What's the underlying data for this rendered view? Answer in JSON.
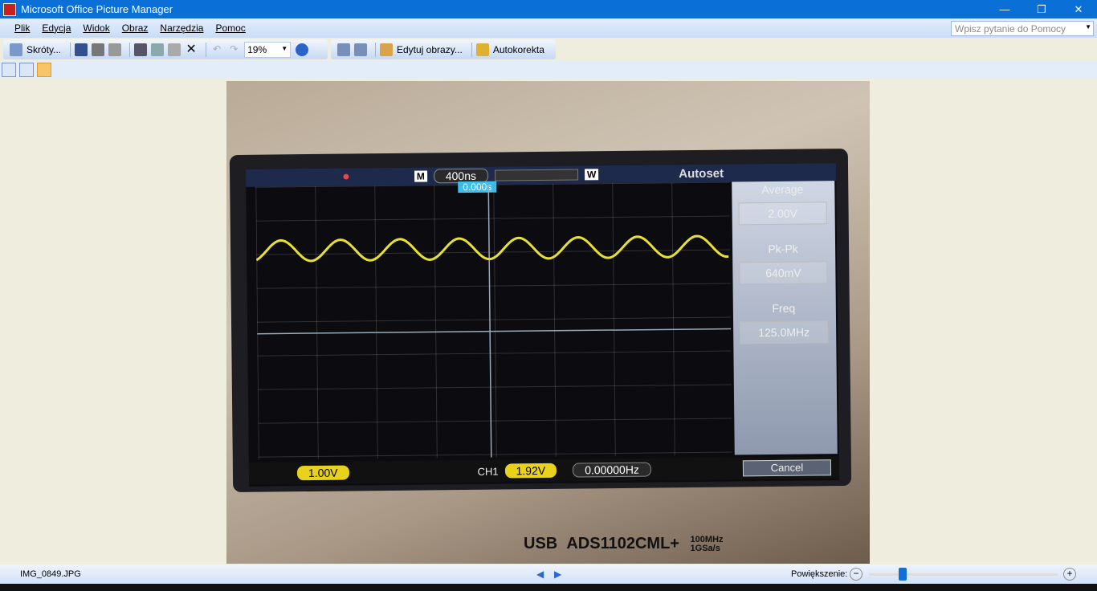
{
  "window": {
    "title": "Microsoft Office Picture Manager",
    "min": "—",
    "restore": "❐",
    "close": "✕"
  },
  "menu": [
    "Plik",
    "Edycja",
    "Widok",
    "Obraz",
    "Narzędzia",
    "Pomoc"
  ],
  "help_placeholder": "Wpisz pytanie do Pomocy",
  "toolbar": {
    "shortcuts": "Skróty...",
    "zoom": "19%",
    "edit": "Edytuj obrazy...",
    "autocorrect": "Autokorekta"
  },
  "photo": {
    "timebase": "400ns",
    "trigger_pos": "0.000s",
    "mode_m": "M",
    "mode_w": "W",
    "measure_title": "Autoset",
    "avg_label": "Average",
    "avg_value": "2.00V",
    "pkpk_label": "Pk-Pk",
    "pkpk_value": "640mV",
    "freq_label": "Freq",
    "freq_value": "125.0MHz",
    "ch_scale": "1.00V",
    "ch": "CH1",
    "trig_level": "1.92V",
    "trig_freq": "0.00000Hz",
    "cancel": "Cancel",
    "usb": "USB",
    "model": "ADS1102CML+",
    "bw": "100MHz",
    "rate": "1GSa/s"
  },
  "status": {
    "filename": "IMG_0849.JPG",
    "zoom_label": "Powiększenie:",
    "zoom_level_fraction": 0.18
  },
  "colors": {
    "titlebar": "#0a6fd6",
    "trace": "#e8e030"
  }
}
